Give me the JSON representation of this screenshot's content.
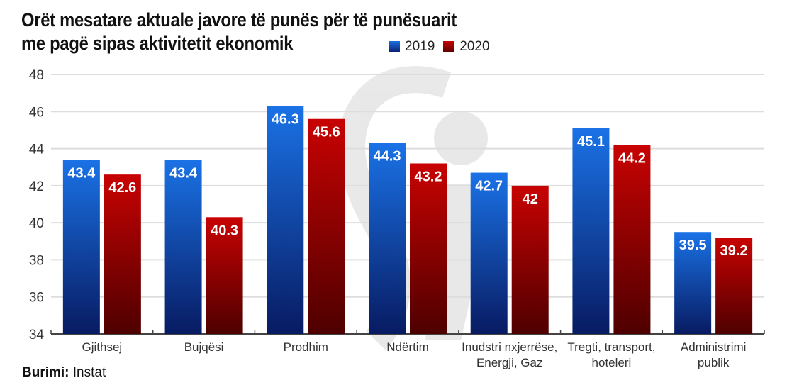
{
  "header": {
    "title_line1": "Orët mesatare aktuale javore të punës për të punësuarit",
    "title_line2": "me pagë sipas aktivitetit ekonomik"
  },
  "legend": [
    {
      "label": "2019",
      "color": "#1565d8"
    },
    {
      "label": "2020",
      "color": "#b00000"
    }
  ],
  "source": {
    "label": "Burimi:",
    "value": "Instat"
  },
  "chart_data": {
    "type": "bar",
    "title": "Orët mesatare aktuale javore të punës për të punësuarit me pagë sipas aktivitetit ekonomik",
    "xlabel": "",
    "ylabel": "",
    "ylim": [
      34,
      48
    ],
    "yticks": [
      34,
      36,
      38,
      40,
      42,
      44,
      46,
      48
    ],
    "grid": true,
    "legend_position": "top",
    "categories": [
      [
        "Gjithsej"
      ],
      [
        "Bujqësi"
      ],
      [
        "Prodhim"
      ],
      [
        "Ndërtim"
      ],
      [
        "Inudstri nxjerrëse,",
        "Energji, Gaz"
      ],
      [
        "Tregti, transport,",
        "hoteleri"
      ],
      [
        "Administrimi",
        "publik"
      ]
    ],
    "series": [
      {
        "name": "2019",
        "values": [
          43.4,
          43.4,
          46.3,
          44.3,
          42.7,
          45.1,
          39.5
        ],
        "labels": [
          "43.4",
          "43.4",
          "46.3",
          "44.3",
          "42.7",
          "45.1",
          "39.5"
        ]
      },
      {
        "name": "2020",
        "values": [
          42.6,
          40.3,
          45.6,
          43.2,
          42,
          44.2,
          39.2
        ],
        "labels": [
          "42.6",
          "40.3",
          "45.6",
          "43.2",
          "42",
          "44.2",
          "39.2"
        ]
      }
    ]
  }
}
